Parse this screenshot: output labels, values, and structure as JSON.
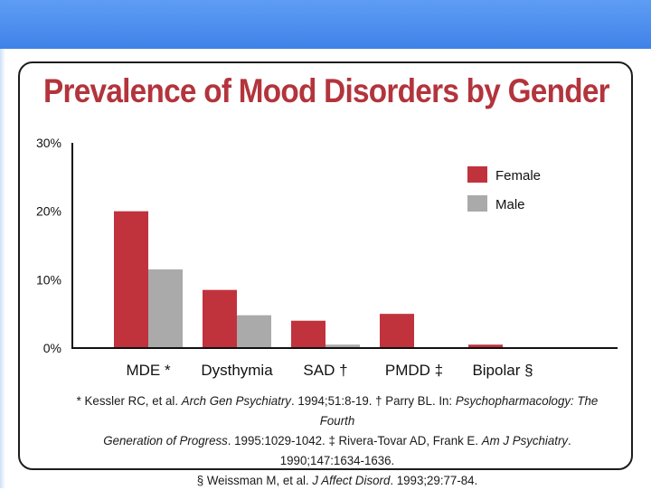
{
  "colors": {
    "female": "#c0333d",
    "male": "#aaaaaa",
    "title": "#b3343c",
    "axis": "#111111",
    "header_band": "#4a8cf0"
  },
  "chart_data": {
    "type": "bar",
    "title": "Prevalence of Mood Disorders by Gender",
    "categories": [
      "MDE *",
      "Dysthymia",
      "SAD †",
      "PMDD ‡",
      "Bipolar §"
    ],
    "series": [
      {
        "name": "Female",
        "values": [
          20,
          8.5,
          4,
          5,
          0.5
        ]
      },
      {
        "name": "Male",
        "values": [
          11.5,
          4.8,
          0.5,
          0,
          0
        ]
      }
    ],
    "yticks": [
      "0%",
      "10%",
      "20%",
      "30%"
    ],
    "ylim": [
      0,
      30
    ],
    "xlabel": "",
    "ylabel": "",
    "grid": false,
    "legend_position": "top-right"
  },
  "footnote": {
    "line1_a": "* Kessler RC, et al. ",
    "line1_b": "Arch Gen Psychiatry",
    "line1_c": ". 1994;51:8-19. † Parry BL. In: ",
    "line1_d": "Psychopharmacology: The Fourth",
    "line2_a": "Generation of Progress",
    "line2_b": ". 1995:1029-1042. ‡ Rivera-Tovar AD, Frank E. ",
    "line2_c": "Am J Psychiatry",
    "line2_d": ". 1990;147:1634-1636.",
    "line3_a": "§ Weissman M, et al. ",
    "line3_b": "J Affect Disord",
    "line3_c": ". 1993;29:77-84."
  }
}
